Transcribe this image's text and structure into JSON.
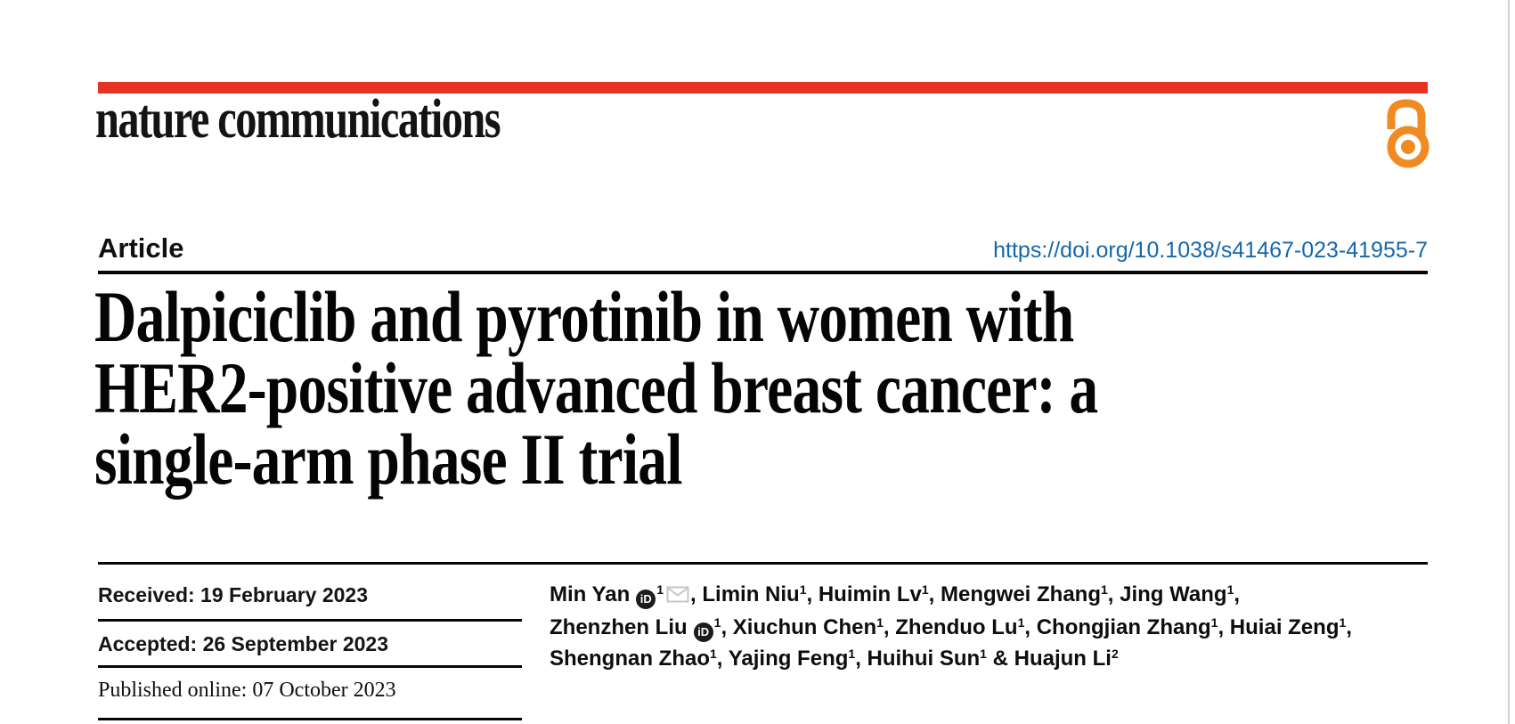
{
  "page": {
    "journal": "nature communications",
    "kicker": "Article",
    "doi": "https://doi.org/10.1038/s41467-023-41955-7",
    "title": "Dalpiciclib and pyrotinib in women with\nHER2-positive advanced breast cancer: a\nsingle-arm phase II trial"
  },
  "history": {
    "received": "Received: 19 February 2023",
    "accepted": "Accepted: 26 September 2023",
    "published": "Published online: 07 October 2023"
  },
  "authors": {
    "lines": [
      {
        "segments": [
          {
            "t": "Min Yan"
          },
          {
            "icon": "orcid"
          },
          {
            "sup": "1"
          },
          {
            "icon": "envelope"
          },
          {
            "t": ", Limin Niu"
          },
          {
            "sup": "1"
          },
          {
            "t": ", Huimin Lv"
          },
          {
            "sup": "1"
          },
          {
            "t": ", Mengwei Zhang"
          },
          {
            "sup": "1"
          },
          {
            "t": ", Jing Wang"
          },
          {
            "sup": "1"
          },
          {
            "t": ","
          }
        ]
      },
      {
        "segments": [
          {
            "t": "Zhenzhen Liu"
          },
          {
            "icon": "orcid"
          },
          {
            "sup": "1"
          },
          {
            "t": ", Xiuchun Chen"
          },
          {
            "sup": "1"
          },
          {
            "t": ", Zhenduo Lu"
          },
          {
            "sup": "1"
          },
          {
            "t": ", Chongjian Zhang"
          },
          {
            "sup": "1"
          },
          {
            "t": ", Huiai Zeng"
          },
          {
            "sup": "1"
          },
          {
            "t": ","
          }
        ]
      },
      {
        "segments": [
          {
            "t": "Shengnan Zhao"
          },
          {
            "sup": "1"
          },
          {
            "t": ", Yajing Feng"
          },
          {
            "sup": "1"
          },
          {
            "t": ", Huihui Sun"
          },
          {
            "sup": "1"
          },
          {
            "t": " & Huajun Li"
          },
          {
            "sup": "2"
          }
        ]
      }
    ]
  },
  "icons": {
    "open_access": "open-access-padlock",
    "orcid_label": "iD",
    "envelope": "email-envelope"
  },
  "colors": {
    "brand_red": "#e63323",
    "open_access_orange": "#ef8b22",
    "link_blue": "#1567ac"
  }
}
